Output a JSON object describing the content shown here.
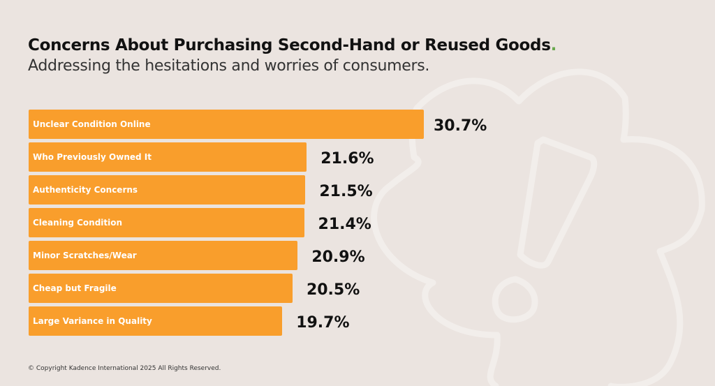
{
  "header": {
    "title": "Concerns About Purchasing Second-Hand or Reused Goods",
    "title_dot": ".",
    "subtitle": "Addressing the hesitations and worries of consumers."
  },
  "colors": {
    "bar": "#f99e2c",
    "background": "#ebe4e0",
    "accent_dot": "#6aa84f"
  },
  "chart_data": {
    "type": "bar",
    "orientation": "horizontal",
    "title": "Concerns About Purchasing Second-Hand or Reused Goods",
    "subtitle": "Addressing the hesitations and worries of consumers.",
    "categories": [
      "Unclear Condition Online",
      "Who Previously Owned It",
      "Authenticity Concerns",
      "Cleaning Condition",
      "Minor Scratches/Wear",
      "Cheap but Fragile",
      "Large Variance in Quality"
    ],
    "values": [
      30.7,
      21.6,
      21.5,
      21.4,
      20.9,
      20.5,
      19.7
    ],
    "labels": [
      "30.7%",
      "21.6%",
      "21.5%",
      "21.4%",
      "20.9%",
      "20.5%",
      "19.7%"
    ],
    "unit": "%",
    "grid": false,
    "xlim": [
      0,
      30.7
    ]
  },
  "footer": {
    "copyright": "© Copyright Kadence International 2025 All Rights Reserved."
  }
}
